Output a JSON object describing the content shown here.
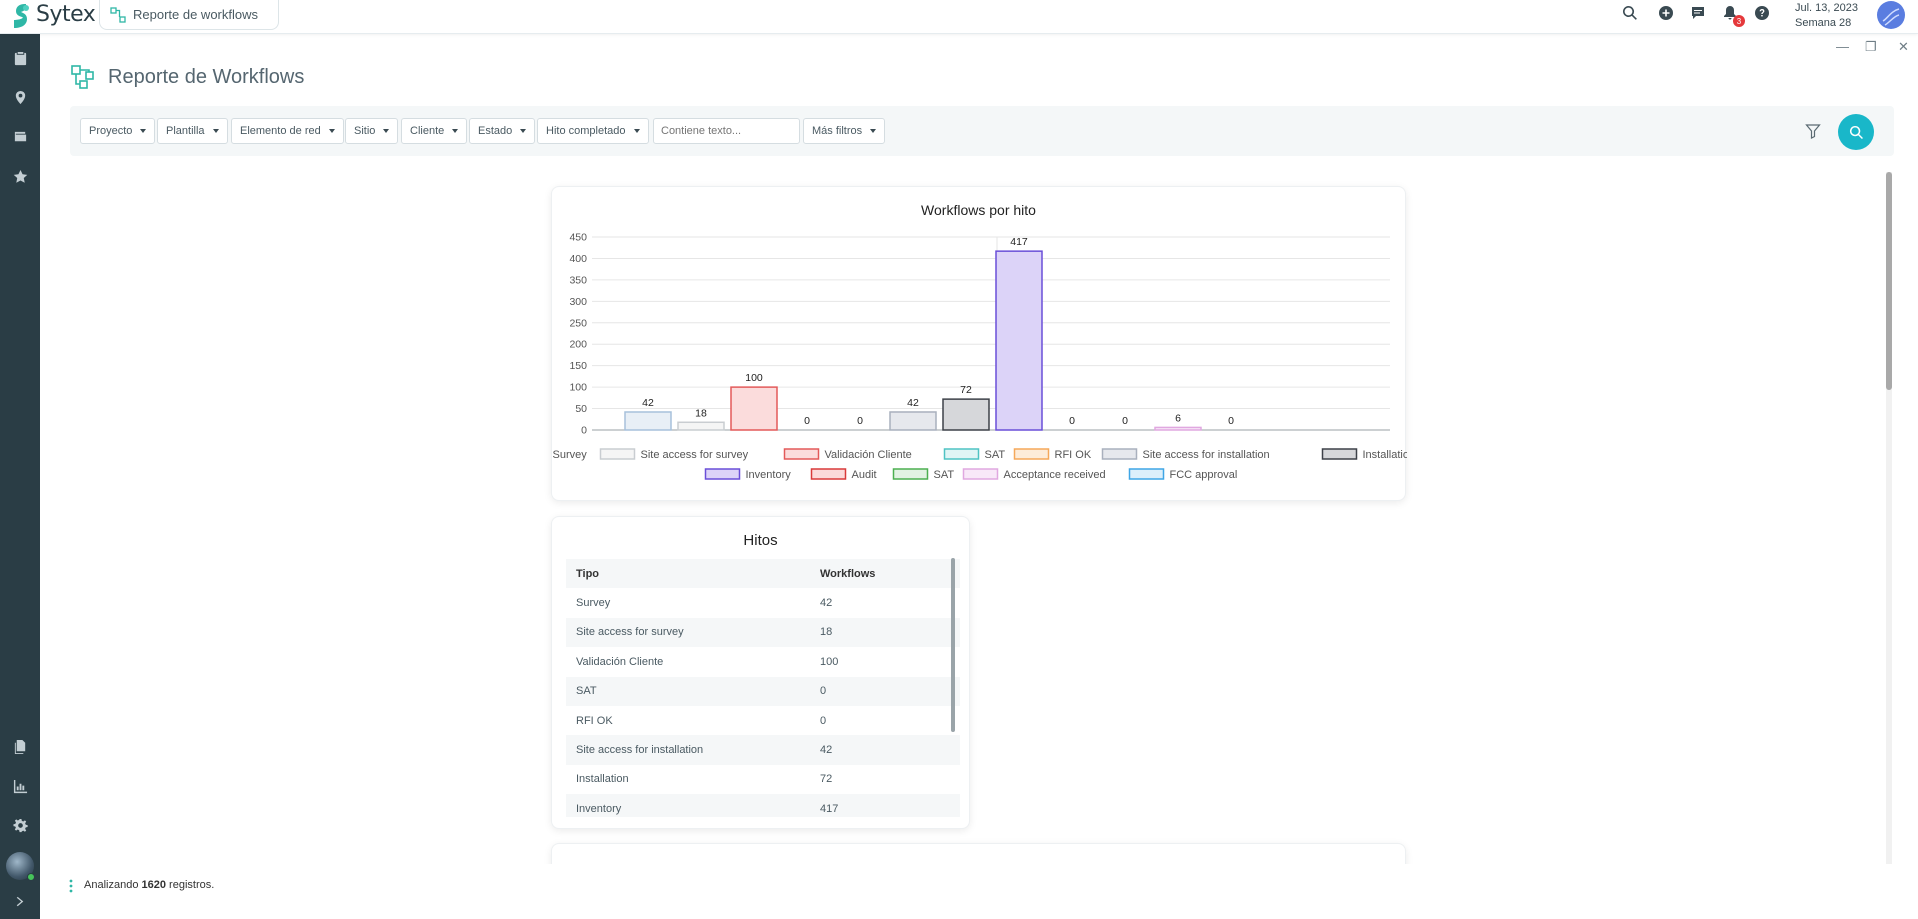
{
  "app": {
    "brand": "Sytex",
    "tab_title": "Reporte de workflows"
  },
  "topbar": {
    "icons": [
      "search-icon",
      "plus-circle-icon",
      "chat-icon",
      "bell-icon",
      "help-icon"
    ],
    "notification_count": "3",
    "date": "Jul. 13, 2023",
    "week": "Semana 28"
  },
  "sidebar": {
    "icons": [
      "clipboard-icon",
      "map-pin-icon",
      "wallet-icon",
      "star-icon",
      "files-icon",
      "chart-icon",
      "settings-icon",
      "expand-icon"
    ]
  },
  "page": {
    "title": "Reporte de Workflows"
  },
  "filters": {
    "buttons": [
      "Proyecto",
      "Plantilla",
      "Elemento de red",
      "Sitio",
      "Cliente",
      "Estado",
      "Hito completado"
    ],
    "text_placeholder": "Contiene texto...",
    "more": "Más filtros"
  },
  "chart_data": {
    "type": "bar",
    "title": "Workflows por hito",
    "categories": [
      "Survey",
      "Site access for survey",
      "Validación Cliente",
      "SAT",
      "RFI OK",
      "Site access for installation",
      "Installation",
      "Inventory",
      "Audit",
      "SAT",
      "Acceptance received",
      "FCC approval"
    ],
    "values": [
      42,
      18,
      100,
      0,
      0,
      42,
      72,
      417,
      0,
      0,
      6,
      0
    ],
    "ylim": [
      0,
      450
    ],
    "yticks": [
      0,
      50,
      100,
      150,
      200,
      250,
      300,
      350,
      400,
      450
    ],
    "colors": [
      "#a7c1db",
      "#c9cdd1",
      "#e35a5a",
      "#4fc3c3",
      "#f5a85a",
      "#a9b0bd",
      "#3d4148",
      "#6a4fd8",
      "#d93a3a",
      "#4caf50",
      "#e0a8e0",
      "#3fa6e6"
    ],
    "fills": [
      "#e8eff6",
      "#f5f5f5",
      "#fbdcdc",
      "#e0f5f5",
      "#fdecd9",
      "#e6e8ed",
      "#d6d7da",
      "#dcd3f8",
      "#fbdada",
      "#e2f2e3",
      "#f8e8f8",
      "#dceffb"
    ],
    "grid": true,
    "legend_position": "bottom"
  },
  "hitos": {
    "title": "Hitos",
    "headers": [
      "Tipo",
      "Workflows"
    ],
    "rows": [
      [
        "Survey",
        "42"
      ],
      [
        "Site access for survey",
        "18"
      ],
      [
        "Validación Cliente",
        "100"
      ],
      [
        "SAT",
        "0"
      ],
      [
        "RFI OK",
        "0"
      ],
      [
        "Site access for installation",
        "42"
      ],
      [
        "Installation",
        "72"
      ],
      [
        "Inventory",
        "417"
      ]
    ]
  },
  "footer": {
    "prefix": "Analizando",
    "count": "1620",
    "suffix": "registros."
  }
}
